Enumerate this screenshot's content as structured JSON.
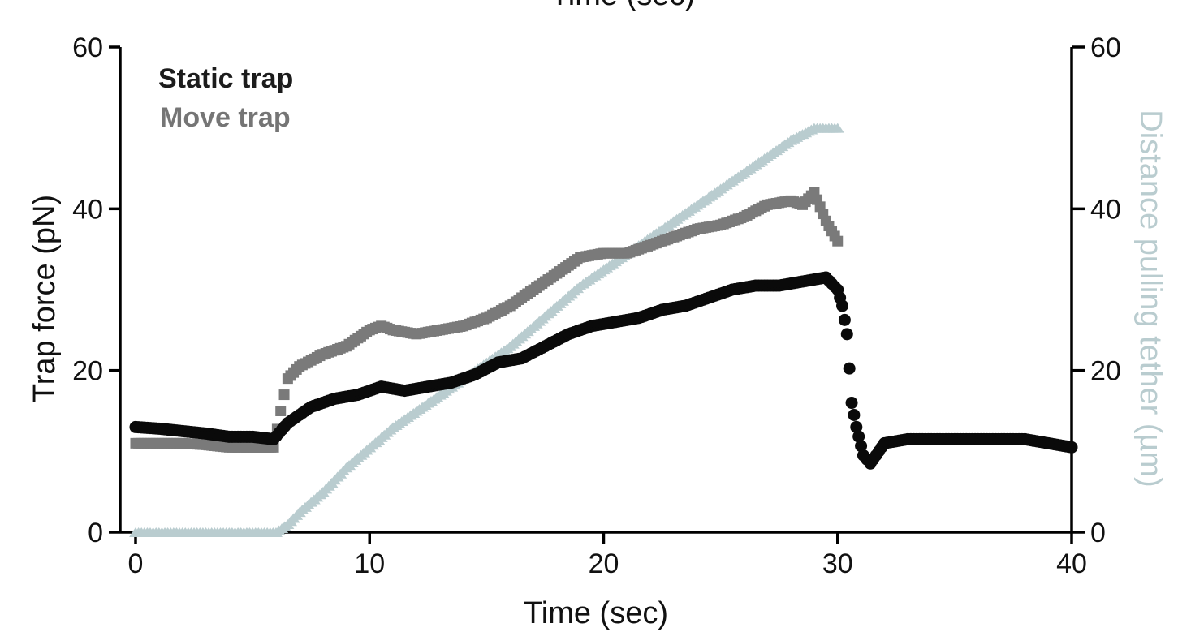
{
  "header_fragment": "Time (sec)",
  "chart_data": {
    "type": "scatter",
    "xlabel": "Time (sec)",
    "ylabel_left": "Trap force (pN)",
    "ylabel_right": "Distance pulling tether (µm)",
    "xlim": [
      0,
      40
    ],
    "ylim_left": [
      0,
      60
    ],
    "ylim_right": [
      0,
      60
    ],
    "x_ticks": [
      "0",
      "10",
      "20",
      "30",
      "40"
    ],
    "y_ticks_left": [
      "0",
      "20",
      "40",
      "60"
    ],
    "y_ticks_right": [
      "0",
      "20",
      "40",
      "60"
    ],
    "grid": false,
    "legend_position": "top-left",
    "colors": {
      "static": "#0a0a0a",
      "move": "#7a7a7a",
      "distance": "#b9cccf",
      "axis": "#000000"
    },
    "series": [
      {
        "name": "Static trap",
        "axis": "left",
        "marker": "circle",
        "x": [
          0,
          1,
          2,
          3,
          4,
          5,
          5.9,
          6.5,
          7.5,
          8.5,
          9.5,
          10.5,
          11.5,
          12.5,
          13.5,
          14.5,
          15.5,
          16.5,
          17.5,
          18.5,
          19.5,
          20.5,
          21.5,
          22.5,
          23.5,
          24.5,
          25.5,
          26.5,
          27.5,
          28.5,
          29.5,
          30,
          30.2,
          30.4,
          30.6,
          30.8,
          31.1,
          31.4,
          32,
          33,
          34,
          35,
          36,
          37,
          38,
          39,
          40
        ],
        "y": [
          13,
          12.8,
          12.5,
          12.2,
          11.8,
          11.8,
          11.5,
          13.5,
          15.5,
          16.5,
          17,
          18,
          17.5,
          18,
          18.5,
          19.5,
          21,
          21.5,
          23,
          24.5,
          25.5,
          26,
          26.5,
          27.5,
          28,
          29,
          30,
          30.5,
          30.5,
          31,
          31.5,
          30,
          28,
          24.5,
          16,
          13,
          9.5,
          8.5,
          11,
          11.5,
          11.5,
          11.5,
          11.5,
          11.5,
          11.5,
          11,
          10.5
        ]
      },
      {
        "name": "Move trap",
        "axis": "left",
        "marker": "square",
        "x": [
          0,
          1,
          2,
          3,
          4,
          5,
          5.9,
          6.2,
          6.5,
          7,
          8,
          9,
          10,
          10.5,
          11,
          12,
          13,
          14,
          15,
          16,
          17,
          18,
          19,
          20,
          21,
          22,
          23,
          24,
          25,
          26,
          27,
          28,
          28.5,
          29,
          29.5,
          30
        ],
        "y": [
          11,
          11,
          11,
          10.8,
          10.5,
          10.5,
          10.5,
          15,
          19,
          20.5,
          22,
          23,
          25,
          25.5,
          25,
          24.5,
          25,
          25.5,
          26.5,
          28,
          30,
          32,
          34,
          34.5,
          34.5,
          35.5,
          36.5,
          37.5,
          38,
          39,
          40.5,
          41,
          40.5,
          42,
          38.5,
          36
        ]
      },
      {
        "name": "",
        "axis": "right",
        "marker": "triangle",
        "x": [
          0,
          1,
          2,
          3,
          4,
          5,
          6,
          6.5,
          7,
          8,
          9,
          10,
          11,
          12,
          13,
          14,
          15,
          16,
          17,
          18,
          19,
          20,
          21,
          22,
          23,
          24,
          25,
          26,
          27,
          28,
          29,
          30
        ],
        "y": [
          0,
          0,
          0,
          0,
          0,
          0,
          0,
          1,
          2.5,
          5,
          8,
          10.5,
          13,
          15,
          17,
          19,
          21,
          23,
          25.5,
          28,
          30.5,
          32.5,
          34.5,
          36.5,
          38.5,
          40.5,
          42.5,
          44.5,
          46.5,
          48.5,
          50,
          50
        ]
      }
    ]
  }
}
